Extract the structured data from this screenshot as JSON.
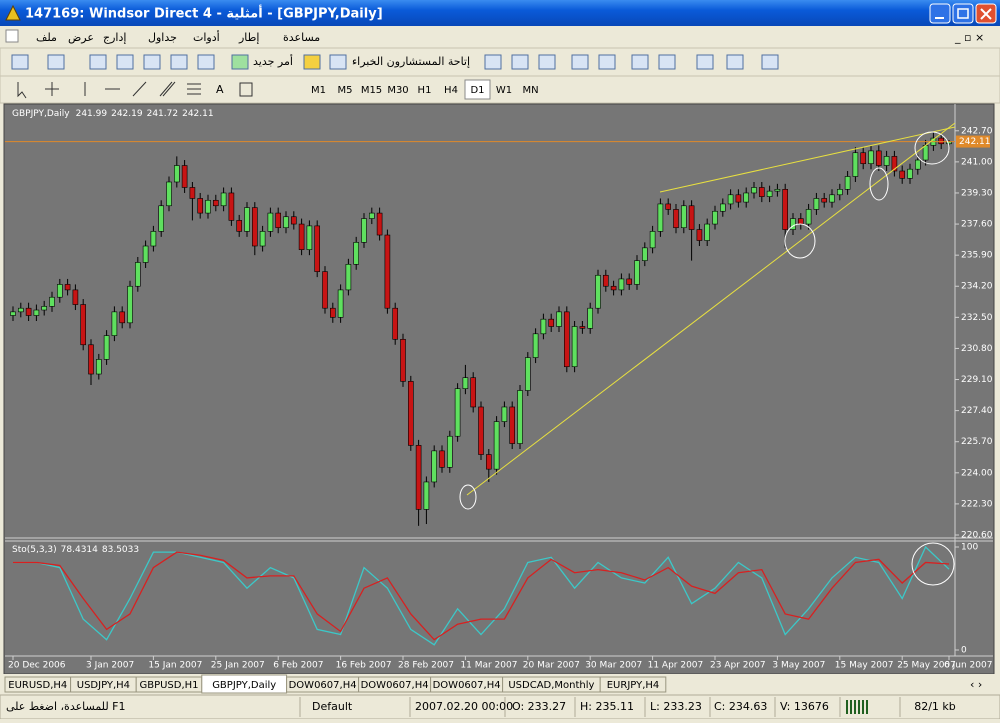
{
  "window_title": "147169: Windsor Direct 4 - أمثلية - [GBPJPY,Daily]",
  "menu": [
    "ملف",
    "عرض",
    "إدارج",
    "جداول",
    "أدوات",
    "إطار",
    "مساعدة"
  ],
  "toolbar": {
    "new_order": "أمر جديد",
    "expert_advisors": "إتاحة المستشارون الخبراء"
  },
  "timeframes": [
    "M1",
    "M5",
    "M15",
    "M30",
    "H1",
    "H4",
    "D1",
    "W1",
    "MN"
  ],
  "tabs": [
    "EURUSD,H4",
    "USDJPY,H4",
    "GBPUSD,H1",
    "GBPJPY,Daily",
    "DOW0607,H4",
    "DOW0607,H4",
    "DOW0607,H4",
    "USDCAD,Monthly",
    "EURJPY,H4"
  ],
  "status": {
    "help": "للمساعدة، اضغط على F1",
    "profile": "Default",
    "time": "2007.02.20 00:00",
    "open": "O: 233.27",
    "high": "H: 235.11",
    "low": "L: 233.23",
    "close": "C: 234.63",
    "volume": "V: 13676",
    "traffic": "82/1 kb"
  },
  "chart_data": [
    {
      "type": "candlestick",
      "title": "GBPJPY,Daily",
      "up_color": "#5fe05f",
      "down_color": "#c81414",
      "price_line_color": "#e08a2a",
      "ylim": [
        220.6,
        244.0
      ],
      "yticks": [
        {
          "value": 242.7,
          "label": "242.70"
        },
        {
          "value": 241.0,
          "label": "241.00"
        },
        {
          "value": 239.3,
          "label": "239.30"
        },
        {
          "value": 237.6,
          "label": "237.60"
        },
        {
          "value": 235.9,
          "label": "235.90"
        },
        {
          "value": 234.2,
          "label": "234.20"
        },
        {
          "value": 232.5,
          "label": "232.50"
        },
        {
          "value": 230.8,
          "label": "230.80"
        },
        {
          "value": 229.1,
          "label": "229.10"
        },
        {
          "value": 227.4,
          "label": "227.40"
        },
        {
          "value": 225.7,
          "label": "225.70"
        },
        {
          "value": 224.0,
          "label": "224.00"
        },
        {
          "value": 222.3,
          "label": "222.30"
        },
        {
          "value": 220.6,
          "label": "220.60"
        }
      ],
      "categories": [
        "20 Dec 2006",
        null,
        null,
        null,
        null,
        null,
        null,
        null,
        null,
        null,
        "3 Jan 2007",
        null,
        null,
        null,
        null,
        null,
        null,
        null,
        "15 Jan 2007",
        null,
        null,
        null,
        null,
        null,
        null,
        null,
        "25 Jan 2007",
        null,
        null,
        null,
        null,
        null,
        null,
        null,
        "6 Feb 2007",
        null,
        null,
        null,
        null,
        null,
        null,
        null,
        "16 Feb 2007",
        null,
        null,
        null,
        null,
        null,
        null,
        null,
        "28 Feb 2007",
        null,
        null,
        null,
        null,
        null,
        null,
        null,
        "11 Mar 2007",
        null,
        null,
        null,
        null,
        null,
        null,
        null,
        "20 Mar 2007",
        null,
        null,
        null,
        null,
        null,
        null,
        null,
        "30 Mar 2007",
        null,
        null,
        null,
        null,
        null,
        null,
        null,
        "11 Apr 2007",
        null,
        null,
        null,
        null,
        null,
        null,
        null,
        "23 Apr 2007",
        null,
        null,
        null,
        null,
        null,
        null,
        null,
        "3 May 2007",
        null,
        null,
        null,
        null,
        null,
        null,
        null,
        "15 May 2007",
        null,
        null,
        null,
        null,
        null,
        null,
        null,
        "25 May 2007",
        null,
        null,
        null,
        null,
        null,
        "6 Jun 2007"
      ],
      "candles": [
        [
          232.6,
          233.1,
          232.3,
          232.8
        ],
        [
          232.8,
          233.3,
          232.5,
          233.0
        ],
        [
          233.0,
          233.3,
          232.3,
          232.6
        ],
        [
          232.6,
          233.2,
          232.3,
          232.9
        ],
        [
          232.9,
          233.4,
          232.6,
          233.1
        ],
        [
          233.1,
          233.9,
          232.8,
          233.6
        ],
        [
          233.6,
          234.6,
          233.3,
          234.3
        ],
        [
          234.3,
          234.6,
          233.7,
          234.0
        ],
        [
          234.0,
          234.3,
          232.9,
          233.2
        ],
        [
          233.2,
          233.5,
          230.7,
          231.0
        ],
        [
          231.0,
          231.3,
          228.8,
          229.4
        ],
        [
          229.4,
          230.5,
          229.1,
          230.2
        ],
        [
          230.2,
          231.8,
          229.9,
          231.5
        ],
        [
          231.5,
          233.1,
          231.2,
          232.8
        ],
        [
          232.8,
          233.1,
          231.9,
          232.2
        ],
        [
          232.2,
          234.5,
          231.9,
          234.2
        ],
        [
          234.2,
          235.8,
          233.9,
          235.5
        ],
        [
          235.5,
          236.7,
          235.2,
          236.4
        ],
        [
          236.4,
          237.5,
          236.1,
          237.2
        ],
        [
          237.2,
          238.9,
          236.9,
          238.6
        ],
        [
          238.6,
          240.2,
          238.3,
          239.9
        ],
        [
          239.9,
          241.3,
          239.6,
          240.8
        ],
        [
          240.8,
          241.1,
          239.3,
          239.6
        ],
        [
          239.6,
          239.9,
          237.8,
          239.0
        ],
        [
          239.0,
          239.3,
          237.9,
          238.2
        ],
        [
          238.2,
          239.2,
          237.9,
          238.9
        ],
        [
          238.9,
          239.2,
          238.3,
          238.6
        ],
        [
          238.6,
          239.6,
          238.3,
          239.3
        ],
        [
          239.3,
          239.6,
          237.5,
          237.8
        ],
        [
          237.8,
          238.1,
          236.9,
          237.2
        ],
        [
          237.2,
          238.8,
          236.9,
          238.5
        ],
        [
          238.5,
          238.8,
          235.9,
          236.4
        ],
        [
          236.4,
          237.5,
          236.1,
          237.2
        ],
        [
          237.2,
          238.5,
          236.9,
          238.2
        ],
        [
          238.2,
          238.5,
          237.1,
          237.4
        ],
        [
          237.4,
          238.3,
          237.1,
          238.0
        ],
        [
          238.0,
          238.3,
          237.3,
          237.6
        ],
        [
          237.6,
          237.9,
          235.9,
          236.2
        ],
        [
          236.2,
          237.8,
          235.9,
          237.5
        ],
        [
          237.5,
          237.8,
          234.7,
          235.0
        ],
        [
          235.0,
          235.3,
          232.7,
          233.0
        ],
        [
          233.0,
          233.3,
          232.2,
          232.5
        ],
        [
          232.5,
          234.3,
          232.2,
          234.0
        ],
        [
          234.0,
          235.7,
          233.7,
          235.4
        ],
        [
          235.4,
          236.9,
          235.1,
          236.6
        ],
        [
          236.6,
          238.2,
          236.3,
          237.9
        ],
        [
          237.9,
          238.5,
          237.6,
          238.2
        ],
        [
          238.2,
          238.5,
          236.7,
          237.0
        ],
        [
          237.0,
          237.3,
          232.7,
          233.0
        ],
        [
          233.0,
          233.3,
          231.0,
          231.3
        ],
        [
          231.3,
          231.6,
          228.7,
          229.0
        ],
        [
          229.0,
          229.3,
          225.2,
          225.5
        ],
        [
          225.5,
          225.8,
          221.1,
          222.0
        ],
        [
          222.0,
          223.8,
          221.2,
          223.5
        ],
        [
          223.5,
          225.5,
          223.2,
          225.2
        ],
        [
          225.2,
          225.5,
          224.0,
          224.3
        ],
        [
          224.3,
          226.3,
          224.0,
          226.0
        ],
        [
          226.0,
          228.9,
          225.7,
          228.6
        ],
        [
          228.6,
          229.9,
          228.3,
          229.2
        ],
        [
          229.2,
          229.5,
          227.3,
          227.6
        ],
        [
          227.6,
          227.9,
          224.7,
          225.0
        ],
        [
          225.0,
          225.3,
          223.5,
          224.2
        ],
        [
          224.2,
          227.1,
          223.9,
          226.8
        ],
        [
          226.8,
          227.9,
          226.5,
          227.6
        ],
        [
          227.6,
          227.9,
          225.3,
          225.6
        ],
        [
          225.6,
          228.8,
          225.3,
          228.5
        ],
        [
          228.5,
          230.6,
          228.2,
          230.3
        ],
        [
          230.3,
          231.9,
          230.0,
          231.6
        ],
        [
          231.6,
          232.7,
          231.3,
          232.4
        ],
        [
          232.4,
          232.7,
          231.7,
          232.0
        ],
        [
          232.0,
          233.1,
          231.7,
          232.8
        ],
        [
          232.8,
          233.1,
          229.5,
          229.8
        ],
        [
          229.8,
          232.3,
          229.5,
          232.0
        ],
        [
          232.0,
          232.3,
          231.6,
          231.9
        ],
        [
          231.9,
          233.3,
          231.6,
          233.0
        ],
        [
          233.0,
          235.1,
          232.7,
          234.8
        ],
        [
          234.8,
          235.1,
          233.9,
          234.2
        ],
        [
          234.2,
          234.5,
          233.7,
          234.0
        ],
        [
          234.0,
          234.9,
          233.7,
          234.6
        ],
        [
          234.6,
          234.9,
          234.0,
          234.3
        ],
        [
          234.3,
          235.9,
          234.0,
          235.6
        ],
        [
          235.6,
          236.6,
          235.3,
          236.3
        ],
        [
          236.3,
          237.5,
          236.0,
          237.2
        ],
        [
          237.2,
          239.0,
          236.9,
          238.7
        ],
        [
          238.7,
          239.0,
          238.1,
          238.4
        ],
        [
          238.4,
          238.7,
          237.1,
          237.4
        ],
        [
          237.4,
          238.9,
          237.1,
          238.6
        ],
        [
          238.6,
          238.9,
          235.6,
          237.3
        ],
        [
          237.3,
          237.6,
          236.4,
          236.7
        ],
        [
          236.7,
          237.9,
          236.4,
          237.6
        ],
        [
          237.6,
          238.6,
          237.3,
          238.3
        ],
        [
          238.3,
          239.0,
          238.0,
          238.7
        ],
        [
          238.7,
          239.5,
          238.4,
          239.2
        ],
        [
          239.2,
          239.5,
          238.5,
          238.8
        ],
        [
          238.8,
          239.6,
          238.5,
          239.3
        ],
        [
          239.3,
          239.9,
          239.0,
          239.6
        ],
        [
          239.6,
          239.9,
          238.8,
          239.1
        ],
        [
          239.1,
          239.7,
          238.8,
          239.4
        ],
        [
          239.4,
          239.8,
          239.1,
          239.5
        ],
        [
          239.5,
          239.8,
          236.3,
          237.3
        ],
        [
          237.3,
          238.2,
          237.0,
          237.9
        ],
        [
          237.9,
          238.2,
          237.3,
          237.6
        ],
        [
          237.6,
          238.7,
          237.3,
          238.4
        ],
        [
          238.4,
          239.3,
          238.1,
          239.0
        ],
        [
          239.0,
          239.3,
          238.5,
          238.8
        ],
        [
          238.8,
          239.5,
          238.5,
          239.2
        ],
        [
          239.2,
          239.8,
          238.9,
          239.5
        ],
        [
          239.5,
          240.5,
          239.2,
          240.2
        ],
        [
          240.2,
          241.8,
          239.9,
          241.5
        ],
        [
          241.5,
          241.8,
          240.6,
          240.9
        ],
        [
          240.9,
          241.9,
          240.6,
          241.6
        ],
        [
          241.6,
          241.9,
          240.5,
          240.8
        ],
        [
          240.8,
          241.6,
          240.5,
          241.3
        ],
        [
          241.3,
          241.6,
          240.2,
          240.5
        ],
        [
          240.5,
          240.8,
          239.8,
          240.1
        ],
        [
          240.1,
          240.9,
          239.8,
          240.6
        ],
        [
          240.6,
          241.4,
          240.3,
          241.1
        ],
        [
          241.1,
          242.2,
          240.8,
          241.9
        ],
        [
          241.9,
          242.6,
          241.6,
          242.3
        ],
        [
          242.3,
          242.6,
          241.7,
          241.99
        ],
        [
          241.99,
          242.19,
          241.72,
          242.11
        ]
      ]
    },
    {
      "type": "line",
      "title": "Sto(5,3,3)",
      "ylim": [
        0,
        100
      ],
      "yticks": [
        100,
        0
      ],
      "x": [
        0,
        3,
        6,
        9,
        12,
        15,
        18,
        21,
        24,
        27,
        30,
        33,
        36,
        39,
        42,
        45,
        48,
        51,
        54,
        57,
        60,
        63,
        66,
        69,
        72,
        75,
        78,
        81,
        84,
        87,
        90,
        93,
        96,
        99,
        102,
        105,
        108,
        111,
        114,
        117,
        120
      ],
      "series": [
        {
          "color": "#3cc8c8",
          "values": [
            85,
            85,
            80,
            30,
            10,
            50,
            95,
            95,
            90,
            85,
            60,
            80,
            70,
            20,
            15,
            80,
            60,
            20,
            5,
            40,
            15,
            40,
            85,
            90,
            60,
            85,
            70,
            65,
            90,
            45,
            60,
            85,
            70,
            15,
            40,
            70,
            90,
            85,
            50,
            100,
            78.4314
          ]
        },
        {
          "color": "#d82020",
          "values": [
            85,
            85,
            82,
            50,
            20,
            35,
            80,
            95,
            92,
            87,
            70,
            72,
            72,
            35,
            18,
            60,
            70,
            35,
            10,
            25,
            30,
            30,
            70,
            88,
            75,
            78,
            75,
            68,
            80,
            62,
            55,
            75,
            78,
            35,
            30,
            60,
            85,
            88,
            65,
            85,
            83.5033
          ]
        }
      ]
    }
  ]
}
